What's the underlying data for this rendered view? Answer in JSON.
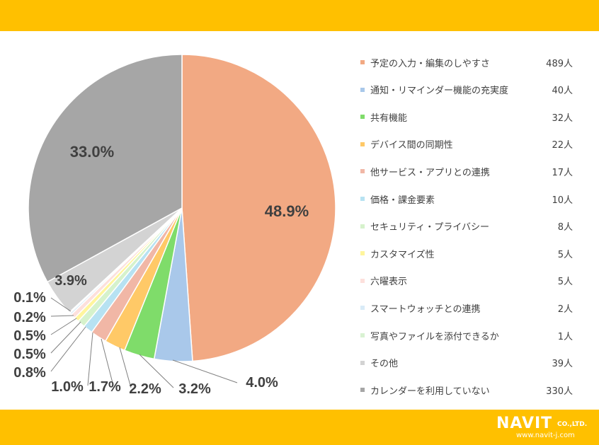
{
  "chart_data": {
    "type": "pie",
    "slices": [
      {
        "label": "予定の入力・編集のしやすさ",
        "count": "489人",
        "value": 48.9,
        "pct_label": "48.9%",
        "color": "#f2a983"
      },
      {
        "label": "通知・リマインダー機能の充実度",
        "count": "40人",
        "value": 4.0,
        "pct_label": "4.0%",
        "color": "#a9c8ea"
      },
      {
        "label": "共有機能",
        "count": "32人",
        "value": 3.2,
        "pct_label": "3.2%",
        "color": "#7fdc6a"
      },
      {
        "label": "デバイス間の同期性",
        "count": "22人",
        "value": 2.2,
        "pct_label": "2.2%",
        "color": "#ffc967"
      },
      {
        "label": "他サービス・アプリとの連携",
        "count": "17人",
        "value": 1.7,
        "pct_label": "1.7%",
        "color": "#f1b7a6"
      },
      {
        "label": "価格・課金要素",
        "count": "10人",
        "value": 1.0,
        "pct_label": "1.0%",
        "color": "#b7e2f2"
      },
      {
        "label": "セキュリティ・プライバシー",
        "count": "8人",
        "value": 0.8,
        "pct_label": "0.8%",
        "color": "#d6f2cc"
      },
      {
        "label": "カスタマイズ性",
        "count": "5人",
        "value": 0.5,
        "pct_label": "0.5%",
        "color": "#fff59d"
      },
      {
        "label": "六曜表示",
        "count": "5人",
        "value": 0.5,
        "pct_label": "0.5%",
        "color": "#fde0dc"
      },
      {
        "label": "スマートウォッチとの連携",
        "count": "2人",
        "value": 0.2,
        "pct_label": "0.2%",
        "color": "#d9ebf7"
      },
      {
        "label": "写真やファイルを添付できるか",
        "count": "1人",
        "value": 0.1,
        "pct_label": "0.1%",
        "color": "#d9f2d2"
      },
      {
        "label": "その他",
        "count": "39人",
        "value": 3.9,
        "pct_label": "3.9%",
        "color": "#d3d3d3"
      },
      {
        "label": "カレンダーを利用していない",
        "count": "330人",
        "value": 33.0,
        "pct_label": "33.0%",
        "color": "#a6a6a6"
      }
    ],
    "legend_position": "right"
  },
  "footer": {
    "logo_main": "NAVIT",
    "logo_suffix": "CO.,LTD.",
    "logo_url": "www.navit-j.com"
  }
}
